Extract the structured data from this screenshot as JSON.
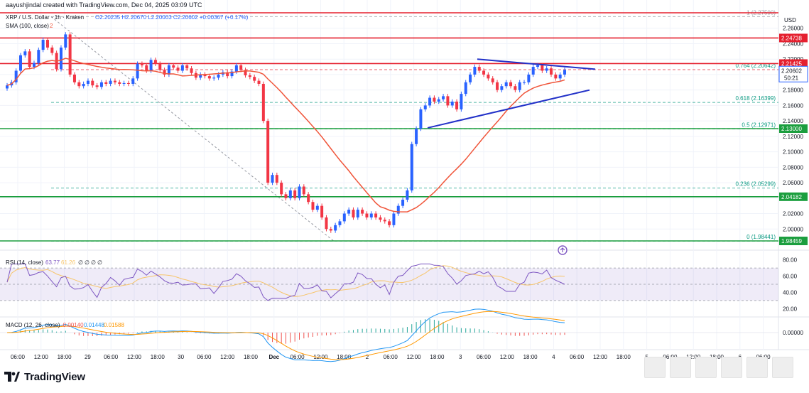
{
  "header": {
    "author_line": "aayushjindal created with TradingView.com, Dec 04, 2025 03:09 UTC"
  },
  "legend": {
    "symbol_line": "XRP / U.S. Dollar · 1h · Kraken",
    "ohlc": {
      "O": "2.20235",
      "H": "2.20670",
      "L": "2.20003",
      "C": "2.20602",
      "change": "+0.00367 (+0.17%)"
    },
    "sma": "SMA (100, close)",
    "sma_value": "2",
    "currency": "USD"
  },
  "branding": {
    "logo_text": "TradingView"
  },
  "colors": {
    "up": "#2962ff",
    "down": "#f23645",
    "sma": "#f0553a",
    "hline_red": "#e5202f",
    "hline_green": "#1b9e3e",
    "trend": "#2231c8",
    "fib": "#089981",
    "rsi": "#7e57c2",
    "rsi_ma": "#f7c56b",
    "macd": "#2196f3",
    "signal": "#ff9800",
    "grid": "#f0f3fa"
  },
  "chart_data": [
    {
      "type": "candlestick",
      "title": "XRP / U.S. Dollar · 1h · Kraken",
      "ylim": [
        1.98,
        2.28
      ],
      "x_ticks": [
        "06:00",
        "12:00",
        "18:00",
        "29",
        "06:00",
        "12:00",
        "18:00",
        "30",
        "06:00",
        "12:00",
        "18:00",
        "Dec",
        "06:00",
        "12:00",
        "18:00",
        "2",
        "06:00",
        "12:00",
        "18:00",
        "3",
        "06:00",
        "12:00",
        "18:00",
        "4",
        "06:00",
        "12:00",
        "18:00",
        "5",
        "06:00",
        "12:00",
        "18:00",
        "6",
        "06:00"
      ],
      "y_ticks": [
        "2.26000",
        "2.24000",
        "2.22000",
        "2.20000",
        "2.18000",
        "2.16000",
        "2.14000",
        "2.12000",
        "2.10000",
        "2.08000",
        "2.06000",
        "2.04000",
        "2.02000",
        "2.00000"
      ],
      "candles_summary": "approximate hourly path",
      "close_path": [
        2.186,
        2.19,
        2.205,
        2.225,
        2.23,
        2.21,
        2.215,
        2.232,
        2.245,
        2.235,
        2.228,
        2.207,
        2.235,
        2.252,
        2.2,
        2.19,
        2.185,
        2.188,
        2.192,
        2.186,
        2.184,
        2.19,
        2.188,
        2.192,
        2.19,
        2.188,
        2.189,
        2.188,
        2.195,
        2.214,
        2.212,
        2.205,
        2.219,
        2.214,
        2.206,
        2.2,
        2.212,
        2.209,
        2.205,
        2.212,
        2.208,
        2.202,
        2.196,
        2.2,
        2.198,
        2.195,
        2.196,
        2.2,
        2.203,
        2.198,
        2.204,
        2.212,
        2.206,
        2.199,
        2.197,
        2.192,
        2.188,
        2.14,
        2.06,
        2.07,
        2.06,
        2.045,
        2.04,
        2.05,
        2.04,
        2.055,
        2.045,
        2.035,
        2.025,
        2.03,
        2.015,
        2.0,
        1.998,
        2.005,
        2.01,
        2.02,
        2.025,
        2.015,
        2.025,
        2.02,
        2.015,
        2.02,
        2.015,
        2.012,
        2.01,
        2.005,
        2.02,
        2.03,
        2.038,
        2.05,
        2.11,
        2.13,
        2.155,
        2.16,
        2.17,
        2.165,
        2.168,
        2.172,
        2.16,
        2.165,
        2.155,
        2.175,
        2.19,
        2.2,
        2.21,
        2.205,
        2.2,
        2.195,
        2.19,
        2.18,
        2.185,
        2.19,
        2.185,
        2.18,
        2.19,
        2.19,
        2.2,
        2.21,
        2.212,
        2.205,
        2.208,
        2.2,
        2.195,
        2.2,
        2.206
      ],
      "levels_red": [
        2.28,
        2.24738,
        2.21425
      ],
      "levels_green": [
        2.13,
        2.04182,
        1.98459
      ],
      "price_labels": {
        "last": "2.20602",
        "countdown": "50:21",
        "r1": "2.24738",
        "r2": "2.21425",
        "s1": "2.13000",
        "s2": "2.04182",
        "s3": "1.98459"
      },
      "fib": [
        {
          "label": "1 (2.27500)",
          "value": 2.275
        },
        {
          "label": "0.764 (2.20642)",
          "value": 2.20642
        },
        {
          "label": "0.618 (2.16399)",
          "value": 2.16399
        },
        {
          "label": "0.5 (2.12971)",
          "value": 2.12971
        },
        {
          "label": "0.236 (2.05299)",
          "value": 2.05299
        },
        {
          "label": "0 (1.98441)",
          "value": 1.98441
        }
      ]
    },
    {
      "type": "line",
      "title": "RSI (14, close)",
      "values_label": "63.77",
      "ma_label": "61.26",
      "extra": [
        "∅",
        "∅",
        "∅",
        "∅"
      ],
      "y_ticks": [
        "80.00",
        "60.00",
        "40.00",
        "20.00"
      ],
      "ylim": [
        15,
        85
      ]
    },
    {
      "type": "line",
      "title": "MACD (12, 26, close)",
      "values": [
        "-0.00140",
        "0.01448",
        "0.01588"
      ],
      "y_ticks": [
        "0.00000"
      ]
    }
  ]
}
